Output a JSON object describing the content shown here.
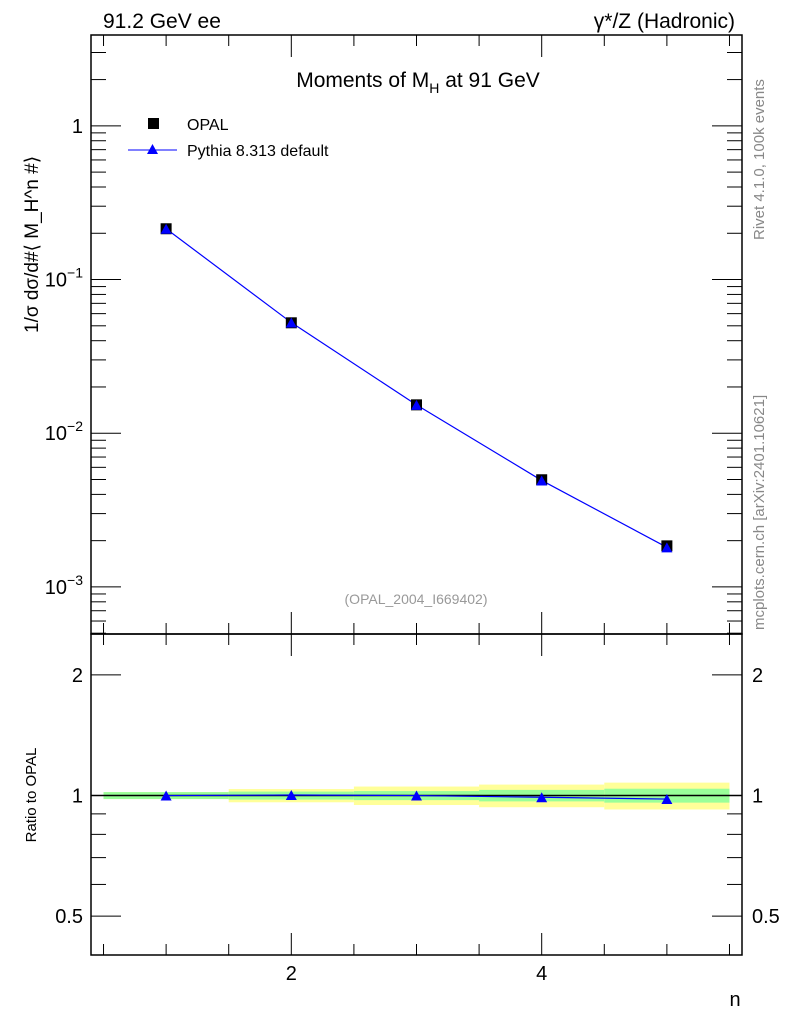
{
  "header": {
    "left": "91.2 GeV ee",
    "right": "γ*/Z (Hadronic)"
  },
  "side_labels": {
    "rivet": "Rivet 4.1.0,  100k events",
    "mcplots": "mcplots.cern.ch [arXiv:2401.10621]"
  },
  "colors": {
    "data": "#000000",
    "mc": "#0000ff",
    "band_outer": "#ffff99",
    "band_inner": "#99ff99",
    "watermark": "#999999"
  },
  "chart_data": [
    {
      "type": "scatter",
      "title": "Moments of M_H at 91 GeV",
      "title_parts": {
        "a": "Moments of M",
        "sub": "H",
        "b": " at 91 GeV"
      },
      "ylabel": "1/σ  dσ/d#⟨ M_H^n #⟩",
      "ylabel_parts": {
        "a": "1/σ   dσ/d#⟨ M",
        "sup": "n",
        "sub": "H",
        "b": " #⟩"
      },
      "yscale": "log",
      "ylim": [
        0.000494,
        3.9
      ],
      "xlim": [
        0.4,
        5.6
      ],
      "ytick_labels": [
        {
          "v": 1,
          "base": "1",
          "exp": ""
        },
        {
          "v": 0.1,
          "base": "10",
          "exp": "−1"
        },
        {
          "v": 0.01,
          "base": "10",
          "exp": "−2"
        },
        {
          "v": 0.001,
          "base": "10",
          "exp": "−3"
        }
      ],
      "legend": [
        "OPAL",
        "Pythia 8.313 default"
      ],
      "legend_position": "top-left",
      "annotation": "(OPAL_2004_I669402)",
      "series": [
        {
          "name": "OPAL",
          "marker": "square",
          "x": [
            1,
            2,
            3,
            4,
            5
          ],
          "y": [
            0.214,
            0.0523,
            0.0153,
            0.00498,
            0.00185
          ]
        },
        {
          "name": "Pythia 8.313 default",
          "marker": "triangle",
          "x": [
            1,
            2,
            3,
            4,
            5
          ],
          "y": [
            0.214,
            0.0525,
            0.0153,
            0.00493,
            0.00181
          ]
        }
      ]
    },
    {
      "type": "line",
      "ylabel": "Ratio to OPAL",
      "xlabel": "n",
      "yscale": "log",
      "ylim": [
        0.4,
        2.53
      ],
      "xlim": [
        0.4,
        5.6
      ],
      "ytick_labels": [
        "0.5",
        "1",
        "2"
      ],
      "ytick_values": [
        0.5,
        1,
        2
      ],
      "xtick_labels": [
        "2",
        "4"
      ],
      "xtick_values": [
        2,
        4
      ],
      "bins": [
        [
          0.5,
          1.5
        ],
        [
          1.5,
          2.5
        ],
        [
          2.5,
          3.5
        ],
        [
          3.5,
          4.5
        ],
        [
          4.5,
          5.5
        ]
      ],
      "band_outer_rel": [
        0.02,
        0.038,
        0.053,
        0.065,
        0.077
      ],
      "band_inner_rel": [
        0.02,
        0.023,
        0.026,
        0.033,
        0.04
      ],
      "series": [
        {
          "name": "Pythia 8.313 default",
          "x": [
            1,
            2,
            3,
            4,
            5
          ],
          "y": [
            1.0,
            1.003,
            1.0,
            0.99,
            0.98
          ]
        }
      ]
    }
  ]
}
